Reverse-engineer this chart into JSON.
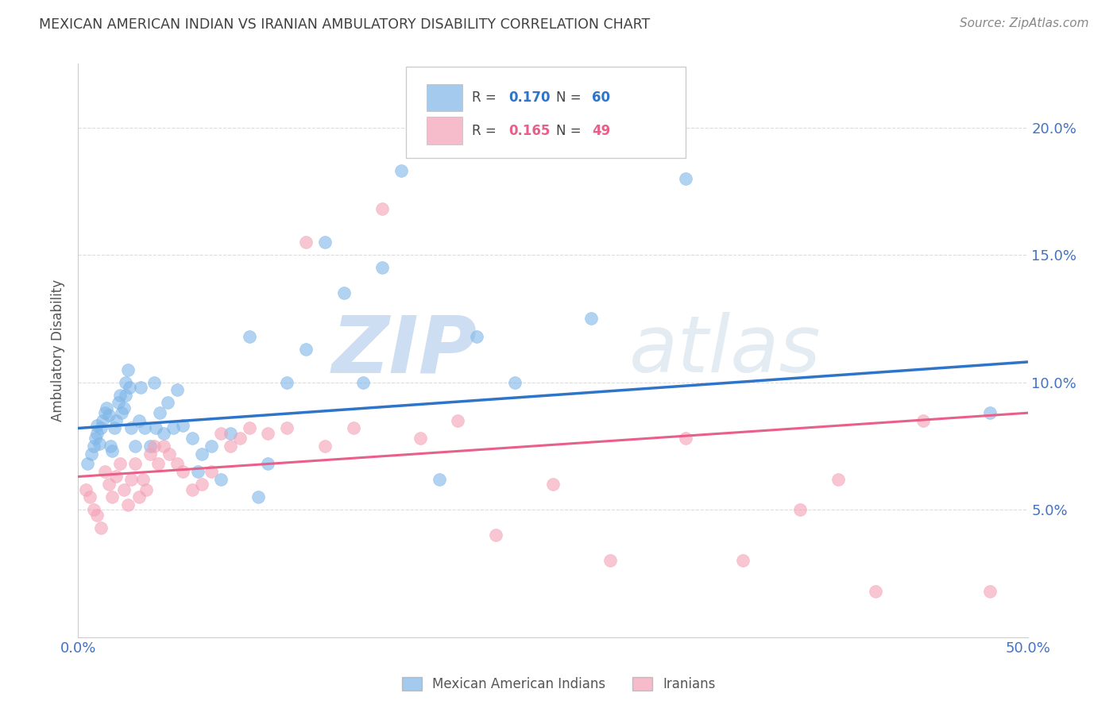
{
  "title": "MEXICAN AMERICAN INDIAN VS IRANIAN AMBULATORY DISABILITY CORRELATION CHART",
  "source": "Source: ZipAtlas.com",
  "ylabel": "Ambulatory Disability",
  "xmin": 0.0,
  "xmax": 0.5,
  "ymin": 0.0,
  "ymax": 0.225,
  "yticks": [
    0.05,
    0.1,
    0.15,
    0.2
  ],
  "ytick_labels": [
    "5.0%",
    "10.0%",
    "15.0%",
    "20.0%"
  ],
  "watermark_zip": "ZIP",
  "watermark_atlas": "atlas",
  "legend_blue_r": "R = 0.170",
  "legend_blue_n": "N = 60",
  "legend_pink_r": "R = 0.165",
  "legend_pink_n": "N = 49",
  "blue_color": "#7EB6E8",
  "pink_color": "#F4A0B5",
  "blue_line_color": "#2E75C9",
  "pink_line_color": "#E8608A",
  "axis_label_color": "#4472C4",
  "title_color": "#404040",
  "source_color": "#888888",
  "background_color": "#FFFFFF",
  "grid_color": "#DDDDDD",
  "blue_scatter_x": [
    0.005,
    0.007,
    0.008,
    0.009,
    0.01,
    0.01,
    0.011,
    0.012,
    0.013,
    0.014,
    0.015,
    0.016,
    0.017,
    0.018,
    0.019,
    0.02,
    0.021,
    0.022,
    0.023,
    0.024,
    0.025,
    0.025,
    0.026,
    0.027,
    0.028,
    0.03,
    0.032,
    0.033,
    0.035,
    0.038,
    0.04,
    0.041,
    0.043,
    0.045,
    0.047,
    0.05,
    0.052,
    0.055,
    0.06,
    0.063,
    0.065,
    0.07,
    0.075,
    0.08,
    0.09,
    0.095,
    0.1,
    0.11,
    0.12,
    0.13,
    0.14,
    0.15,
    0.16,
    0.17,
    0.19,
    0.21,
    0.23,
    0.27,
    0.32,
    0.48
  ],
  "blue_scatter_y": [
    0.068,
    0.072,
    0.075,
    0.078,
    0.08,
    0.083,
    0.076,
    0.082,
    0.085,
    0.088,
    0.09,
    0.087,
    0.075,
    0.073,
    0.082,
    0.085,
    0.092,
    0.095,
    0.088,
    0.09,
    0.095,
    0.1,
    0.105,
    0.098,
    0.082,
    0.075,
    0.085,
    0.098,
    0.082,
    0.075,
    0.1,
    0.082,
    0.088,
    0.08,
    0.092,
    0.082,
    0.097,
    0.083,
    0.078,
    0.065,
    0.072,
    0.075,
    0.062,
    0.08,
    0.118,
    0.055,
    0.068,
    0.1,
    0.113,
    0.155,
    0.135,
    0.1,
    0.145,
    0.183,
    0.062,
    0.118,
    0.1,
    0.125,
    0.18,
    0.088
  ],
  "pink_scatter_x": [
    0.004,
    0.006,
    0.008,
    0.01,
    0.012,
    0.014,
    0.016,
    0.018,
    0.02,
    0.022,
    0.024,
    0.026,
    0.028,
    0.03,
    0.032,
    0.034,
    0.036,
    0.038,
    0.04,
    0.042,
    0.045,
    0.048,
    0.052,
    0.055,
    0.06,
    0.065,
    0.07,
    0.075,
    0.08,
    0.085,
    0.09,
    0.1,
    0.11,
    0.12,
    0.13,
    0.145,
    0.16,
    0.18,
    0.2,
    0.22,
    0.25,
    0.28,
    0.32,
    0.35,
    0.38,
    0.4,
    0.42,
    0.445,
    0.48
  ],
  "pink_scatter_y": [
    0.058,
    0.055,
    0.05,
    0.048,
    0.043,
    0.065,
    0.06,
    0.055,
    0.063,
    0.068,
    0.058,
    0.052,
    0.062,
    0.068,
    0.055,
    0.062,
    0.058,
    0.072,
    0.075,
    0.068,
    0.075,
    0.072,
    0.068,
    0.065,
    0.058,
    0.06,
    0.065,
    0.08,
    0.075,
    0.078,
    0.082,
    0.08,
    0.082,
    0.155,
    0.075,
    0.082,
    0.168,
    0.078,
    0.085,
    0.04,
    0.06,
    0.03,
    0.078,
    0.03,
    0.05,
    0.062,
    0.018,
    0.085,
    0.018
  ],
  "blue_line_y_start": 0.082,
  "blue_line_y_end": 0.108,
  "pink_line_y_start": 0.063,
  "pink_line_y_end": 0.088
}
